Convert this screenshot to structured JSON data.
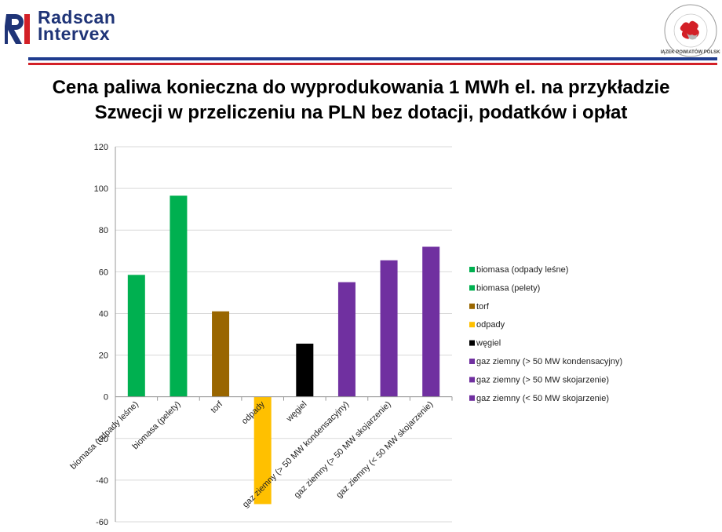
{
  "header": {
    "logo_left_line1": "Radscan",
    "logo_left_line2": "Intervex",
    "logo_right_text": "ZWIĄZEK POWIATÓW POLSKICH"
  },
  "title": {
    "line1": "Cena paliwa konieczna do wyprodukowania 1 MWh el. na przykładzie",
    "line2": "Szwecji w przeliczeniu na PLN bez dotacji, podatków i opłat"
  },
  "colors": {
    "brand_blue": "#1f3c8f",
    "brand_red": "#d32027"
  },
  "chart_data": {
    "type": "bar",
    "title": "",
    "xlabel": "",
    "ylabel": "",
    "ylim": [
      -60,
      120
    ],
    "yticks": [
      -60,
      -40,
      -20,
      0,
      20,
      40,
      60,
      80,
      100,
      120
    ],
    "grid": true,
    "legend_position": "right",
    "categories": [
      "biomasa (odpady leśne)",
      "biomasa (pelety)",
      "torf",
      "odpady",
      "węgiel",
      "gaz ziemny (> 50 MW kondensacyjny)",
      "gaz ziemny (> 50 MW skojarzenie)",
      "gaz ziemny (< 50 MW skojarzenie)"
    ],
    "values": [
      58.5,
      96.5,
      41,
      -51.5,
      25.5,
      55,
      65.5,
      72
    ],
    "colors": [
      "#00b050",
      "#00b050",
      "#996600",
      "#ffc000",
      "#000000",
      "#7030a0",
      "#7030a0",
      "#7030a0"
    ]
  }
}
